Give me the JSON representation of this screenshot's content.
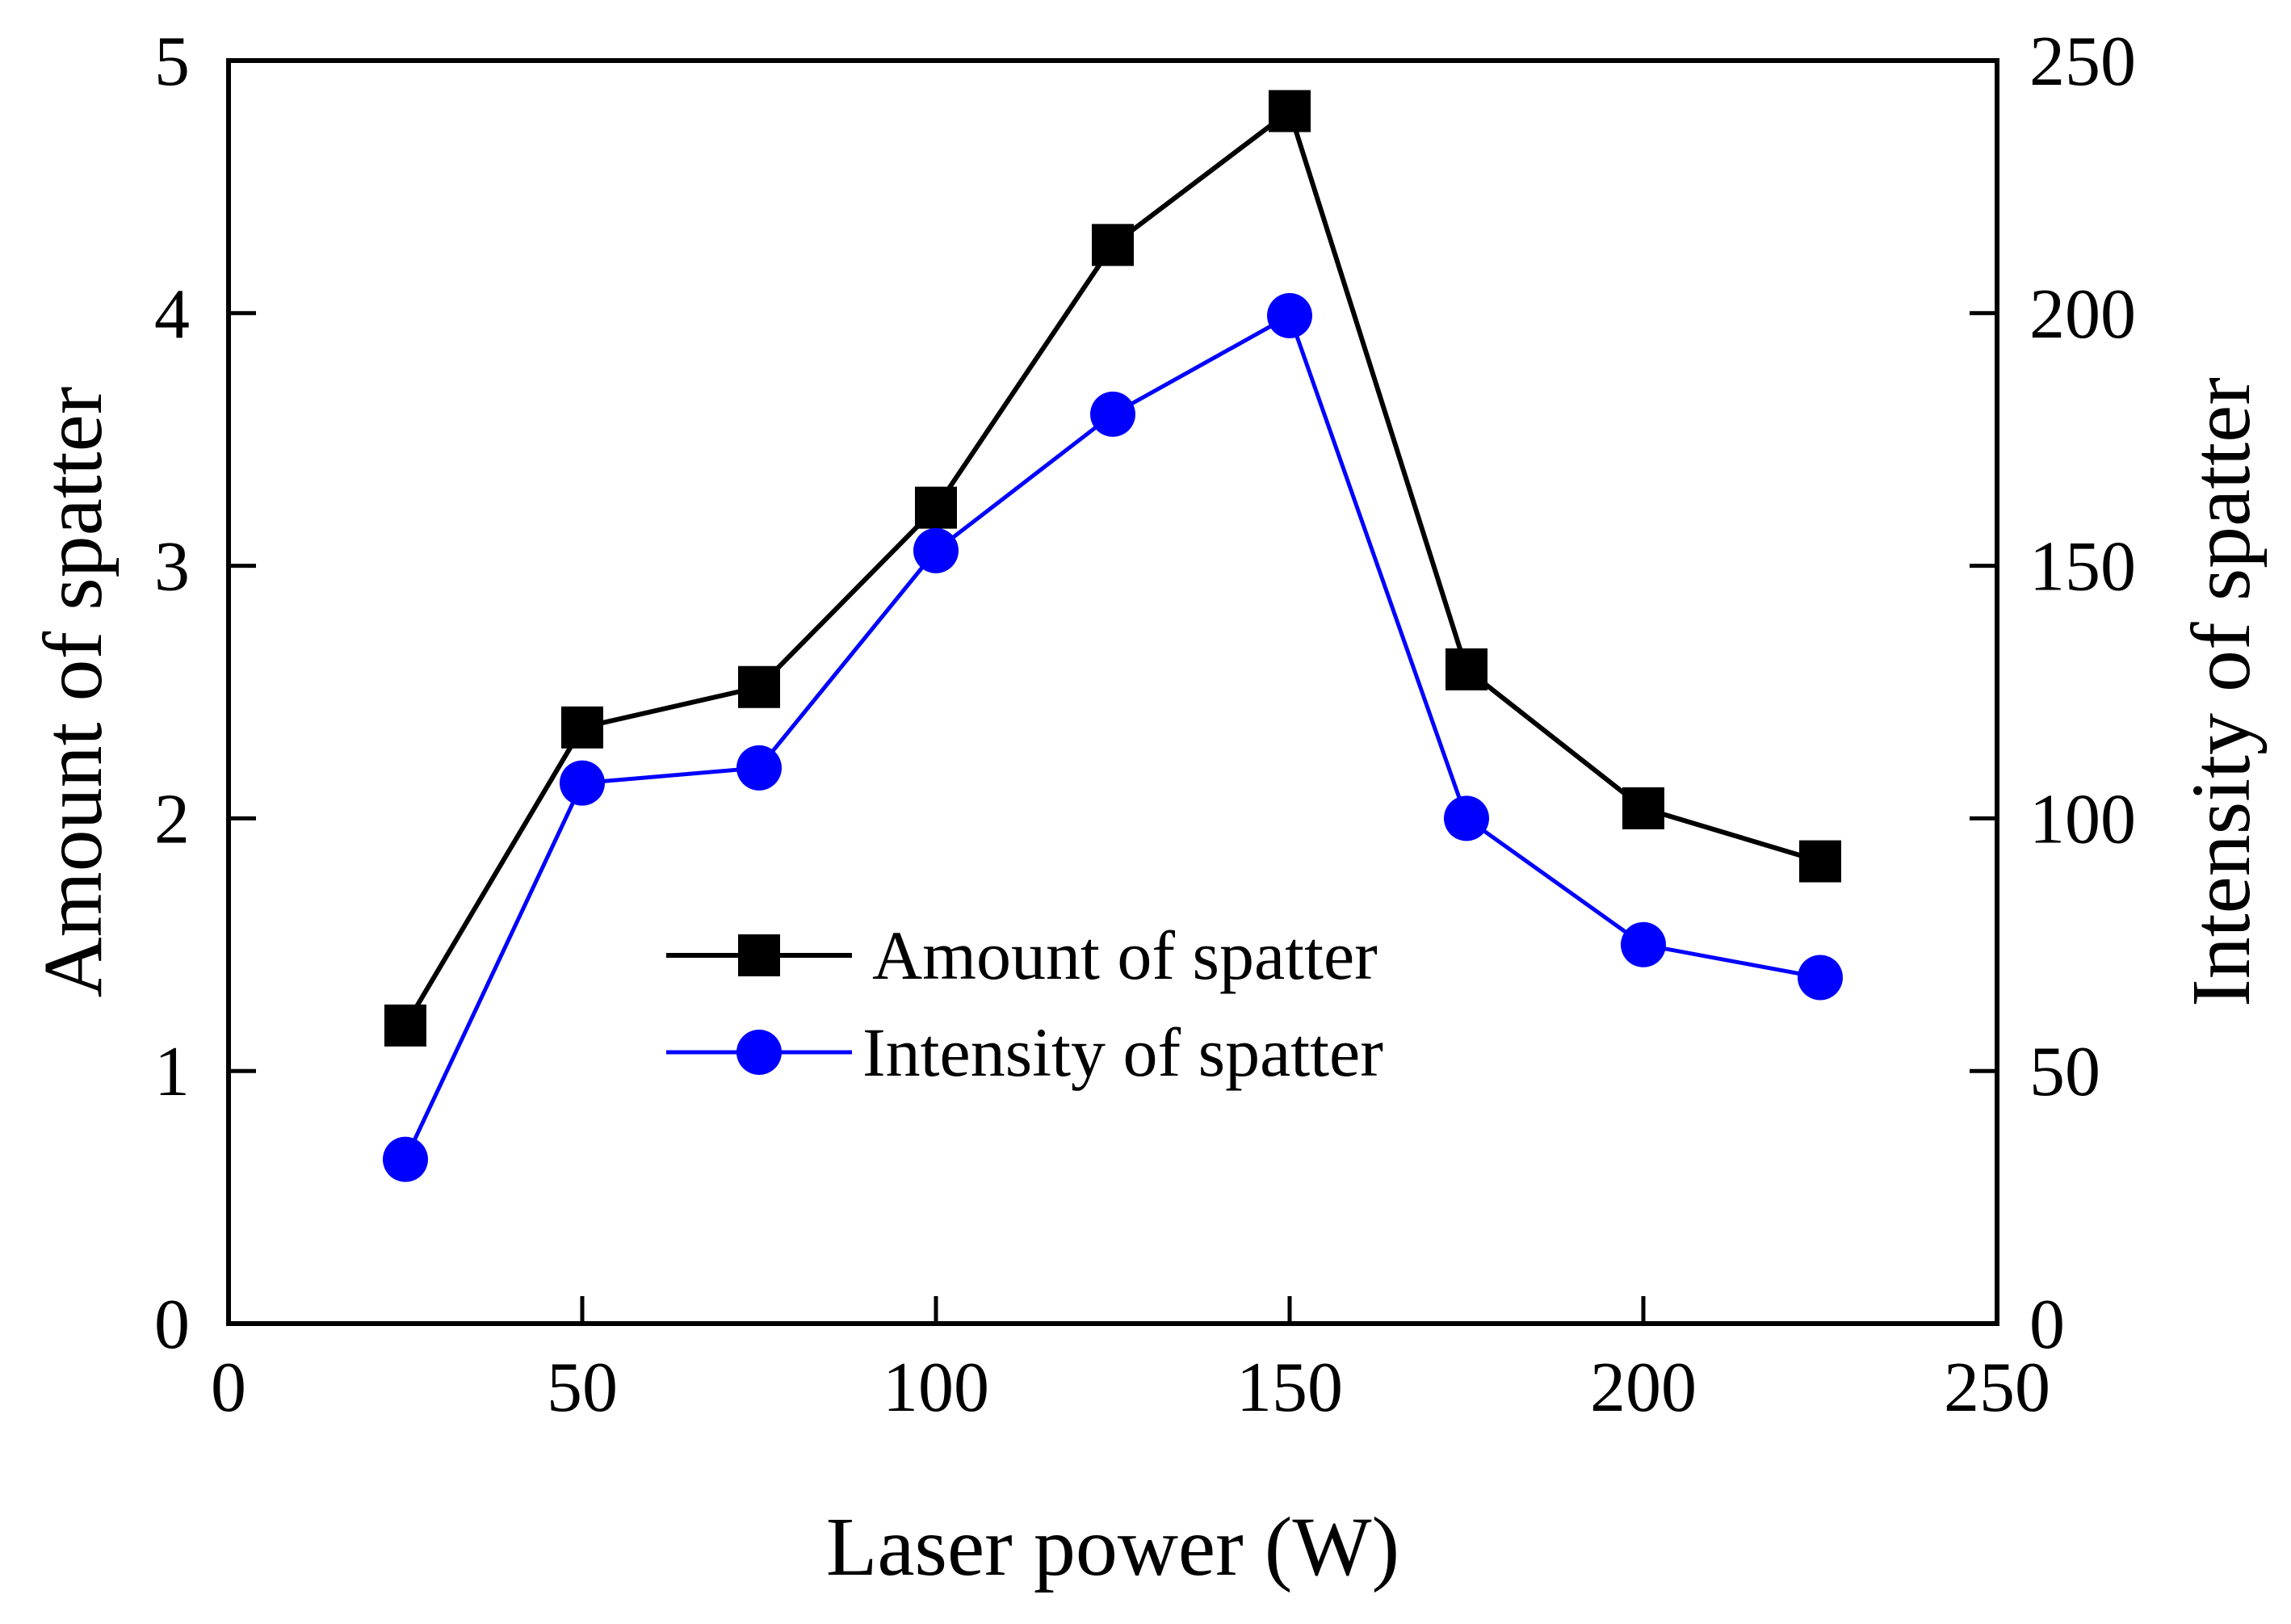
{
  "chart_data": {
    "type": "line",
    "title": "",
    "xlabel": "Laser power (W)",
    "ylabel": "Amount of spatter",
    "y2label": "Intensity of spatter",
    "xlim": [
      0,
      250
    ],
    "ylim": [
      0,
      5
    ],
    "y2lim": [
      0,
      250
    ],
    "xticks": [
      0,
      50,
      100,
      150,
      200,
      250
    ],
    "yticks": [
      0,
      1,
      2,
      3,
      4,
      5
    ],
    "y2ticks": [
      0,
      50,
      100,
      150,
      200,
      250
    ],
    "grid": false,
    "legend_position": "center",
    "x": [
      25,
      50,
      75,
      100,
      125,
      150,
      175,
      200,
      225
    ],
    "series": [
      {
        "name": "Amount of spatter",
        "axis": "left",
        "marker": "square",
        "color": "#000000",
        "values": [
          1.18,
          2.36,
          2.52,
          3.23,
          4.27,
          4.8,
          2.59,
          2.04,
          1.83
        ]
      },
      {
        "name": "Intensity of spatter",
        "axis": "right",
        "marker": "circle",
        "color": "#0000ff",
        "values": [
          32.5,
          107,
          110,
          153,
          180,
          199.5,
          100,
          75,
          68.5
        ]
      }
    ]
  }
}
